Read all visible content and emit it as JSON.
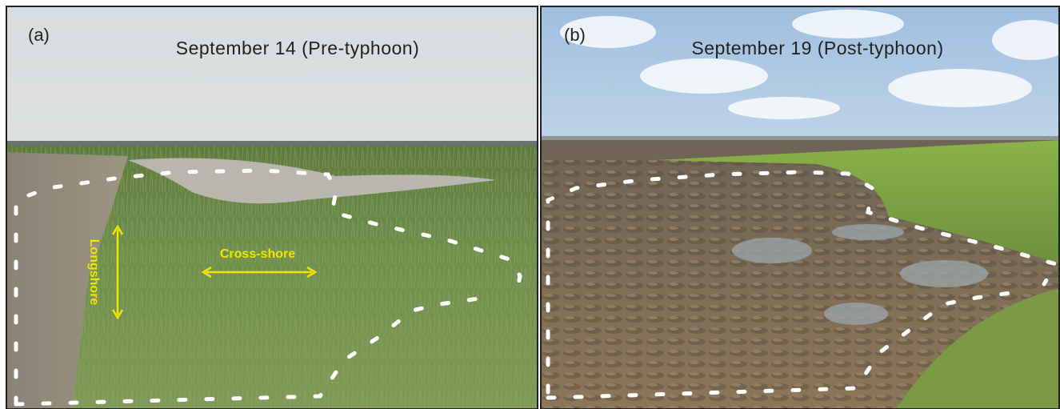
{
  "panels": [
    {
      "label": "(a)",
      "title": "September 14 (Pre-typhoon)"
    },
    {
      "label": "(b)",
      "title": "September 19 (Post-typhoon)"
    }
  ],
  "annotations": {
    "longshore": "Longshore",
    "cross_shore": "Cross-shore"
  }
}
